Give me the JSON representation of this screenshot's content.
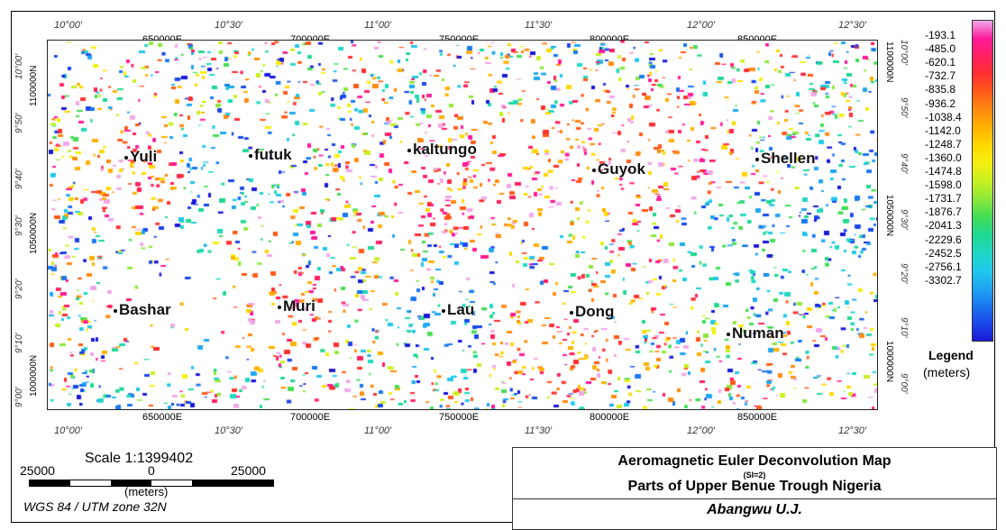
{
  "map": {
    "degree_ticks_top": [
      "10°00'",
      "10°30'",
      "11°00'",
      "11°30'",
      "12°00'",
      "12°30'"
    ],
    "degree_ticks_bottom": [
      "10°00'",
      "10°30'",
      "11°00'",
      "11°30'",
      "12°00'",
      "12°30'"
    ],
    "utm_ticks_top": [
      "650000E",
      "700000E",
      "750000E",
      "800000E",
      "850000E"
    ],
    "utm_ticks_bottom": [
      "650000E",
      "700000E",
      "750000E",
      "800000E",
      "850000E"
    ],
    "lat_ticks_left": [
      "10°00'",
      "9°50'",
      "9°40'",
      "9°30'",
      "9°20'",
      "9°10'",
      "9°00'"
    ],
    "lat_ticks_right": [
      "10°00'",
      "9°50'",
      "9°40'",
      "9°30'",
      "9°20'",
      "9°10'",
      "9°00'"
    ],
    "northing_left": [
      "1100000N",
      "1050000N",
      "1000000N"
    ],
    "northing_right": [
      "1100000N",
      "1050000N",
      "1000000N"
    ],
    "towns": [
      "Yuli",
      "futuk",
      "kaltungo",
      "Guyok",
      "Shellen",
      "Bashar",
      "Muri",
      "Lau",
      "Dong",
      "Numan"
    ]
  },
  "legend": {
    "values": [
      "-193.1",
      "-485.0",
      "-620.1",
      "-732.7",
      "-835.8",
      "-936.2",
      "-1038.4",
      "-1142.0",
      "-1248.7",
      "-1360.0",
      "-1474.8",
      "-1598.0",
      "-1731.7",
      "-1876.7",
      "-2041.3",
      "-2229.6",
      "-2452.5",
      "-2756.1",
      "-3302.7"
    ],
    "colors": [
      "#f0a8e8",
      "#ff1a9a",
      "#ff2060",
      "#ff3030",
      "#ff5a1a",
      "#ff8a10",
      "#ffb000",
      "#ffd800",
      "#f5ef10",
      "#c8f020",
      "#8ee83a",
      "#45dd55",
      "#20d890",
      "#20d8c0",
      "#20c8ea",
      "#20a8f0",
      "#1a78f0",
      "#1a48e8",
      "#1a18d8"
    ],
    "title": "Legend",
    "unit": "(meters)"
  },
  "scale": {
    "title": "Scale 1:1399402",
    "left": "25000",
    "center": "0",
    "right": "25000",
    "unit": "(meters)",
    "projection": "WGS 84 / UTM zone 32N"
  },
  "titleblock": {
    "line1": "Aeromagnetic Euler Deconvolution Map",
    "si": "(SI=2)",
    "line2": "Parts of Upper Benue Trough Nigeria",
    "author": "Abangwu U.J."
  }
}
